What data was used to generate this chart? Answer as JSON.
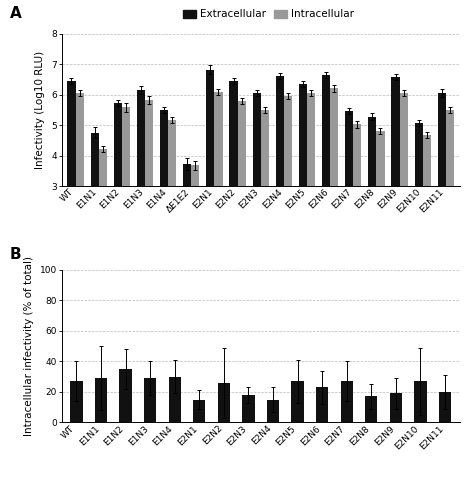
{
  "categories_A": [
    "WT",
    "E1N1",
    "E1N2",
    "E1N3",
    "E1N4",
    "ΔE1E2",
    "E2N1",
    "E2N2",
    "E2N3",
    "E2N4",
    "E2N5",
    "E2N6",
    "E2N7",
    "E2N8",
    "E2N9",
    "E2N10",
    "E2N11"
  ],
  "extracellular": [
    6.45,
    4.75,
    5.72,
    6.15,
    5.5,
    3.72,
    6.82,
    6.45,
    6.05,
    6.62,
    6.35,
    6.65,
    5.45,
    5.28,
    6.58,
    5.08,
    6.05
  ],
  "extracellular_err": [
    0.1,
    0.18,
    0.1,
    0.12,
    0.1,
    0.2,
    0.15,
    0.1,
    0.1,
    0.1,
    0.1,
    0.1,
    0.1,
    0.12,
    0.1,
    0.1,
    0.12
  ],
  "intracellular": [
    6.05,
    4.22,
    5.58,
    5.82,
    5.18,
    3.68,
    6.08,
    5.78,
    5.5,
    5.95,
    6.05,
    6.2,
    5.02,
    4.8,
    6.05,
    4.68,
    5.5
  ],
  "intracellular_err": [
    0.1,
    0.1,
    0.15,
    0.12,
    0.1,
    0.15,
    0.1,
    0.1,
    0.1,
    0.1,
    0.1,
    0.1,
    0.12,
    0.1,
    0.1,
    0.1,
    0.1
  ],
  "ylabel_A": "Infectivity (Log10 RLU)",
  "ylim_A": [
    3,
    8
  ],
  "yticks_A": [
    3,
    4,
    5,
    6,
    7,
    8
  ],
  "categories_B": [
    "WT",
    "E1N1",
    "E1N2",
    "E1N3",
    "E1N4",
    "E2N1",
    "E2N2",
    "E2N3",
    "E2N4",
    "E2N5",
    "E2N6",
    "E2N7",
    "E2N8",
    "E2N9",
    "E2N10",
    "E2N11"
  ],
  "intracellular_pct": [
    27,
    29,
    35,
    29,
    30,
    15,
    26,
    18,
    15,
    27,
    23,
    27,
    17,
    19,
    27,
    20
  ],
  "intracellular_pct_err": [
    13,
    21,
    13,
    11,
    11,
    6,
    23,
    5,
    8,
    14,
    11,
    13,
    8,
    10,
    22,
    11
  ],
  "ylabel_B": "Intracellular infectivity (% of total)",
  "ylim_B": [
    0,
    100
  ],
  "yticks_B": [
    0,
    20,
    40,
    60,
    80,
    100
  ],
  "color_extracellular": "#111111",
  "color_intracellular": "#999999",
  "color_bar_B": "#111111",
  "bar_width": 0.35,
  "legend_fontsize": 7.5,
  "tick_fontsize": 6.5,
  "label_fontsize": 7.5,
  "panel_label_fontsize": 11
}
